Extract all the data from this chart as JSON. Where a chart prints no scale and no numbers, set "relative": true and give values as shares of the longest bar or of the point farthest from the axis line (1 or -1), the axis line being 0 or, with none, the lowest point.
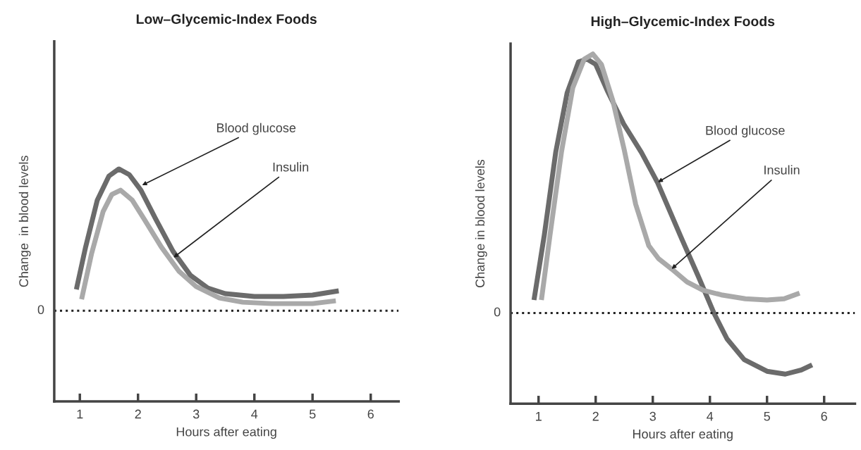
{
  "chart_data": [
    {
      "type": "line",
      "title": "Low–Glycemic-Index Foods",
      "xlabel": "Hours after eating",
      "ylabel": "Change  in blood levels",
      "relative": true,
      "xlim": [
        0.56,
        6.48
      ],
      "xticks": [
        1,
        2,
        3,
        4,
        5,
        6
      ],
      "grid": false,
      "legend": false,
      "marker": "none",
      "line_style": "solid",
      "series": [
        {
          "color": "#6b6b6b",
          "x": [
            0.94,
            1.1,
            1.3,
            1.5,
            1.67,
            1.85,
            2.05,
            2.3,
            2.6,
            2.9,
            3.2,
            3.5,
            4.0,
            4.5,
            5.0,
            5.45
          ],
          "values": [
            0.15,
            0.45,
            0.78,
            0.95,
            1.0,
            0.96,
            0.85,
            0.65,
            0.42,
            0.25,
            0.16,
            0.12,
            0.1,
            0.1,
            0.11,
            0.14
          ]
        },
        {
          "color": "#a9a9a9",
          "x": [
            1.03,
            1.2,
            1.4,
            1.55,
            1.7,
            1.9,
            2.1,
            2.4,
            2.7,
            3.0,
            3.4,
            3.8,
            4.3,
            5.0,
            5.4
          ],
          "values": [
            0.08,
            0.4,
            0.7,
            0.82,
            0.85,
            0.78,
            0.65,
            0.45,
            0.28,
            0.17,
            0.09,
            0.06,
            0.05,
            0.05,
            0.07
          ]
        }
      ],
      "ref_lines": [
        {
          "axis": "y",
          "value": 0,
          "label": "0",
          "line_style": "dotted",
          "color": "#222222"
        }
      ],
      "annotations": [
        {
          "text": "Blood glucose",
          "x": 2.07,
          "y": 0.885
        },
        {
          "text": "Insulin",
          "x": 2.61,
          "y": 0.375
        }
      ]
    },
    {
      "type": "line",
      "title": "High–Glycemic-Index Foods",
      "xlabel": "Hours after eating",
      "ylabel": "Change in blood levels",
      "relative": true,
      "xlim": [
        0.51,
        6.54
      ],
      "xticks": [
        1,
        2,
        3,
        4,
        5,
        6
      ],
      "grid": false,
      "legend": false,
      "marker": "none",
      "line_style": "solid",
      "series": [
        {
          "color": "#6b6b6b",
          "x": [
            0.92,
            1.1,
            1.3,
            1.5,
            1.7,
            1.85,
            2.0,
            2.2,
            2.49,
            2.8,
            3.08,
            3.5,
            3.8,
            4.07,
            4.3,
            4.6,
            5.0,
            5.32,
            5.6,
            5.79
          ],
          "values": [
            0.05,
            0.3,
            0.62,
            0.85,
            0.97,
            0.98,
            0.96,
            0.86,
            0.73,
            0.62,
            0.505,
            0.29,
            0.14,
            0.0,
            -0.1,
            -0.18,
            -0.225,
            -0.236,
            -0.22,
            -0.2
          ]
        },
        {
          "color": "#a9a9a9",
          "x": [
            1.05,
            1.2,
            1.4,
            1.6,
            1.8,
            1.95,
            2.1,
            2.3,
            2.5,
            2.7,
            2.93,
            3.1,
            3.33,
            3.6,
            3.88,
            4.2,
            4.62,
            5.0,
            5.3,
            5.57
          ],
          "values": [
            0.05,
            0.3,
            0.62,
            0.87,
            0.98,
            1.0,
            0.96,
            0.82,
            0.63,
            0.42,
            0.26,
            0.21,
            0.17,
            0.12,
            0.088,
            0.07,
            0.055,
            0.05,
            0.055,
            0.077
          ]
        }
      ],
      "ref_lines": [
        {
          "axis": "y",
          "value": 0,
          "label": "0",
          "line_style": "dotted",
          "color": "#222222"
        }
      ],
      "annotations": [
        {
          "text": "Blood glucose",
          "x": 3.09,
          "y": 0.505
        },
        {
          "text": "Insulin",
          "x": 3.33,
          "y": 0.17
        }
      ]
    }
  ]
}
